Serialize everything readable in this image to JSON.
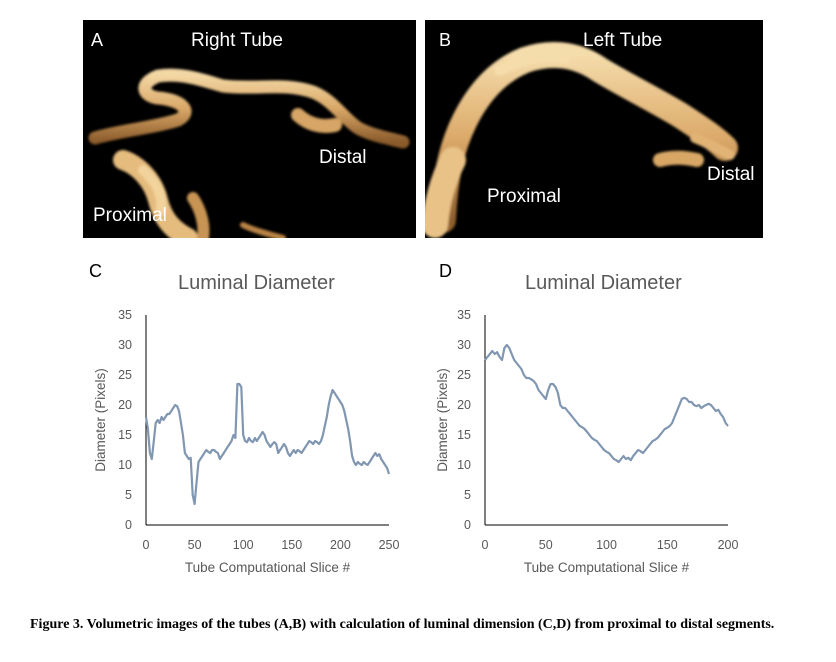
{
  "panels": {
    "a": {
      "letter": "A",
      "title": "Right Tube",
      "label_distal": "Distal",
      "label_proximal": "Proximal"
    },
    "b": {
      "letter": "B",
      "title": "Left Tube",
      "label_distal": "Distal",
      "label_proximal": "Proximal"
    }
  },
  "caption": "Figure 3.  Volumetric images of the tubes (A,B) with calculation of luminal dimension (C,D) from proximal to distal segments.",
  "colors": {
    "line": "#8096b1",
    "axis": "#000000",
    "tube": "#e8c48a"
  },
  "chart_data": [
    {
      "type": "line",
      "letter": "C",
      "title": "Luminal Diameter",
      "xlabel": "Tube Computational Slice #",
      "ylabel": "Diameter (Pixels)",
      "xlim": [
        0,
        250
      ],
      "ylim": [
        0,
        35
      ],
      "xticks": [
        0,
        50,
        100,
        150,
        200,
        250
      ],
      "yticks": [
        0,
        5,
        10,
        15,
        20,
        25,
        30,
        35
      ],
      "grid": false,
      "series": [
        {
          "x": [
            0,
            2,
            4,
            6,
            8,
            10,
            12,
            14,
            16,
            18,
            20,
            22,
            24,
            26,
            28,
            30,
            32,
            34,
            36,
            38,
            40,
            42,
            44,
            46,
            48,
            50,
            52,
            54,
            56,
            58,
            60,
            62,
            64,
            66,
            68,
            70,
            72,
            74,
            76,
            78,
            80,
            82,
            84,
            86,
            88,
            90,
            92,
            94,
            96,
            98,
            100,
            102,
            104,
            106,
            108,
            110,
            112,
            114,
            116,
            118,
            120,
            122,
            124,
            126,
            128,
            130,
            132,
            134,
            136,
            138,
            140,
            142,
            144,
            146,
            148,
            150,
            152,
            154,
            156,
            158,
            160,
            162,
            164,
            166,
            168,
            170,
            172,
            174,
            176,
            178,
            180,
            182,
            184,
            186,
            188,
            190,
            192,
            194,
            196,
            198,
            200,
            202,
            204,
            206,
            208,
            210,
            212,
            214,
            216,
            218,
            220,
            222,
            224,
            226,
            228,
            230,
            232,
            234,
            236,
            238,
            240,
            242,
            244,
            246,
            248,
            250
          ],
          "y": [
            18,
            16,
            12,
            11,
            14,
            17,
            17.5,
            17,
            18,
            17.5,
            18,
            18.5,
            18.5,
            19,
            19.5,
            20,
            19.8,
            19,
            17,
            15,
            12,
            11.5,
            11,
            11.2,
            5,
            3.5,
            7,
            10.5,
            11,
            11.5,
            12,
            12.5,
            12.2,
            12,
            12.5,
            12.5,
            12.2,
            12,
            11,
            11.5,
            12,
            12.5,
            13,
            13.5,
            14,
            15,
            14.5,
            23.5,
            23.5,
            23,
            15,
            14,
            13.8,
            14.5,
            14,
            13.8,
            14.5,
            14,
            14.5,
            15,
            15.5,
            15,
            14,
            13.5,
            13,
            13.5,
            13.8,
            13.5,
            12,
            12.5,
            13,
            13.5,
            13,
            12,
            11.5,
            12,
            12.5,
            12,
            12.5,
            12.3,
            12,
            12.5,
            13,
            13.5,
            14,
            13.8,
            13.5,
            14,
            13.8,
            13.5,
            14,
            15,
            16.5,
            18,
            20,
            21.5,
            22.5,
            22,
            21.5,
            21,
            20.5,
            20,
            19,
            17.5,
            16,
            14,
            11.5,
            10.5,
            10,
            10.5,
            10.2,
            10,
            10.5,
            10.2,
            10,
            10.5,
            11,
            11.5,
            12,
            11.5,
            11.8,
            11,
            10.5,
            10,
            9.5,
            8.5
          ]
        }
      ]
    },
    {
      "type": "line",
      "letter": "D",
      "title": "Luminal Diameter",
      "xlabel": "Tube Computational Slice #",
      "ylabel": "Diameter (Pixels)",
      "xlim": [
        0,
        200
      ],
      "ylim": [
        0,
        35
      ],
      "xticks": [
        0,
        50,
        100,
        150,
        200
      ],
      "yticks": [
        0,
        5,
        10,
        15,
        20,
        25,
        30,
        35
      ],
      "grid": false,
      "series": [
        {
          "x": [
            0,
            2,
            4,
            6,
            8,
            10,
            12,
            14,
            16,
            18,
            20,
            22,
            24,
            26,
            28,
            30,
            32,
            34,
            36,
            38,
            40,
            42,
            44,
            46,
            48,
            50,
            52,
            54,
            56,
            58,
            60,
            62,
            64,
            66,
            68,
            70,
            72,
            74,
            76,
            78,
            80,
            82,
            84,
            86,
            88,
            90,
            92,
            94,
            96,
            98,
            100,
            102,
            104,
            106,
            108,
            110,
            112,
            114,
            116,
            118,
            120,
            122,
            124,
            126,
            128,
            130,
            132,
            134,
            136,
            138,
            140,
            142,
            144,
            146,
            148,
            150,
            152,
            154,
            156,
            158,
            160,
            162,
            164,
            166,
            168,
            170,
            172,
            174,
            176,
            178,
            180,
            182,
            184,
            186,
            188,
            190,
            192,
            194,
            196,
            198,
            200
          ],
          "y": [
            27.5,
            28,
            28.5,
            29,
            28.5,
            28.8,
            28,
            27.5,
            29.5,
            30,
            29.5,
            28.5,
            27.5,
            27,
            26.5,
            26,
            25,
            24.5,
            24.5,
            24.3,
            24,
            23.5,
            22.5,
            22,
            21.5,
            21,
            22.5,
            23.5,
            23.5,
            23,
            22,
            20,
            19.5,
            19.5,
            19,
            18.5,
            18,
            17.5,
            17,
            16.5,
            16.3,
            16,
            15.5,
            15,
            14.5,
            14.2,
            14,
            13.5,
            13,
            12.5,
            12.2,
            12,
            11.5,
            11,
            10.8,
            10.5,
            11,
            11.5,
            11,
            11.2,
            10.8,
            11.5,
            12,
            12.5,
            12.3,
            12,
            12.5,
            13,
            13.5,
            14,
            14.2,
            14.5,
            15,
            15.5,
            16,
            16.2,
            16.5,
            17,
            18,
            19,
            20,
            21,
            21.2,
            21,
            20.5,
            20.5,
            20,
            19.8,
            20,
            19.5,
            19.8,
            20,
            20.2,
            20,
            19.5,
            19,
            19.2,
            18.5,
            18,
            17,
            16.5
          ]
        }
      ]
    }
  ]
}
